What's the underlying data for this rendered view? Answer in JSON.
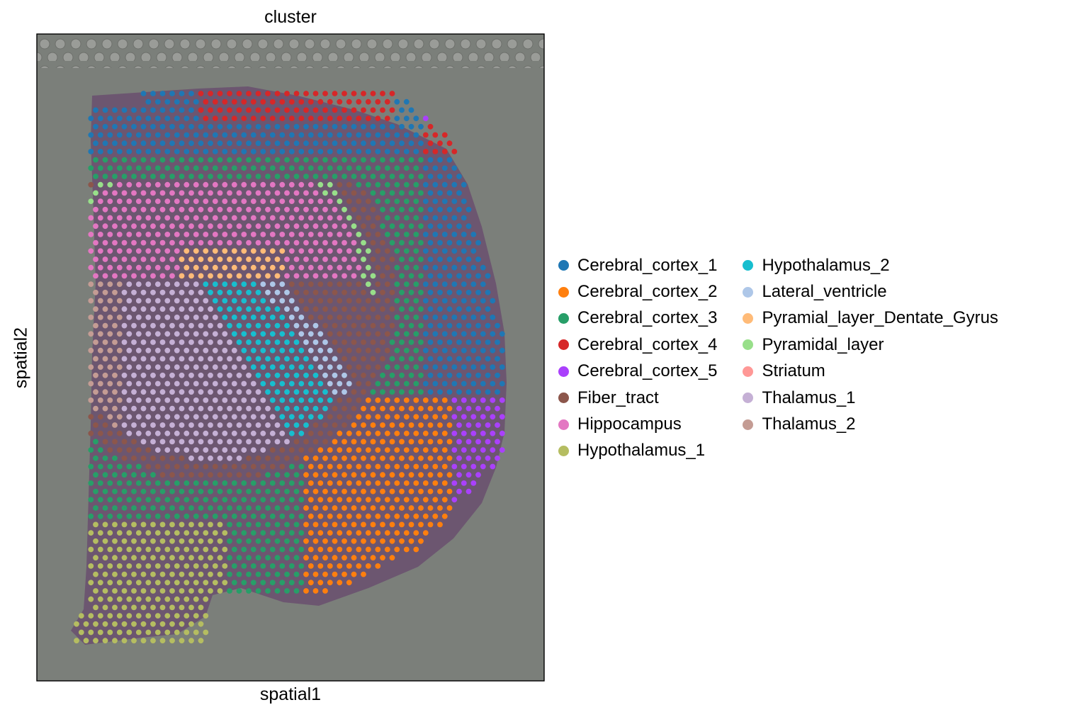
{
  "chart_data": {
    "type": "scatter",
    "title": "cluster",
    "xlabel": "spatial1",
    "ylabel": "spatial2",
    "grid": false,
    "legend_position": "right",
    "legend_columns": 2,
    "series": [
      {
        "name": "Cerebral_cortex_1",
        "color": "#1f77b4",
        "region": "outer cortical band, upper arc"
      },
      {
        "name": "Cerebral_cortex_2",
        "color": "#ff7f0e",
        "region": "lower right cortical band"
      },
      {
        "name": "Cerebral_cortex_3",
        "color": "#279e68",
        "region": "cortical band, middle layer"
      },
      {
        "name": "Cerebral_cortex_4",
        "color": "#d62728",
        "region": "outer cortical edge, upper right"
      },
      {
        "name": "Cerebral_cortex_5",
        "color": "#aa40fc",
        "region": "outermost cortical rim"
      },
      {
        "name": "Fiber_tract",
        "color": "#8c564b",
        "region": "arc between cortex and hippocampus"
      },
      {
        "name": "Hippocampus",
        "color": "#e377c2",
        "region": "upper left dome"
      },
      {
        "name": "Hypothalamus_1",
        "color": "#b5bd61",
        "region": "bottom left"
      },
      {
        "name": "Hypothalamus_2",
        "color": "#17becf",
        "region": "central diagonal strip"
      },
      {
        "name": "Lateral_ventricle",
        "color": "#aec7e8",
        "region": "thin diagonal line"
      },
      {
        "name": "Pyramial_layer_Dentate_Gyrus",
        "color": "#ffbb78",
        "region": "inner hippocampal arc"
      },
      {
        "name": "Pyramidal_layer",
        "color": "#98df8a",
        "region": "outer hippocampal arc"
      },
      {
        "name": "Striatum",
        "color": "#ff9896",
        "region": "lower center diagonal band"
      },
      {
        "name": "Thalamus_1",
        "color": "#c5b0d5",
        "region": "center left"
      },
      {
        "name": "Thalamus_2",
        "color": "#c49c94",
        "region": "left edge middle"
      }
    ]
  }
}
